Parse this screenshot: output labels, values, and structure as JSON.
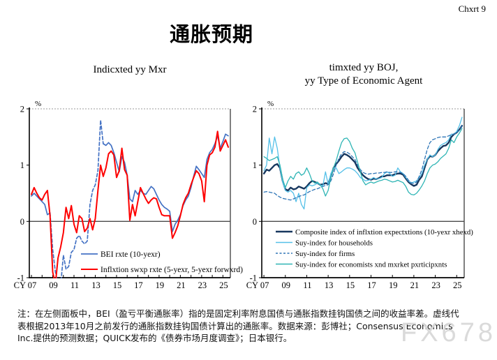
{
  "header": {
    "chart_no": "Chxrt 9",
    "title": "通胀预期"
  },
  "note": "注：在左侧面板中，BEI（盈亏平衡通胀率）指的是固定利率附息国债与通胀指数挂钩国债之间的收益率差。虚线代表根据2013年10月之前发行的通胀指数挂钩国债计算出的通胀率。数据来源：彭博社；Consensus Economics Inc.提供的预测数据；QUICK发布的《债券市场月度调查》；日本银行。",
  "watermark": "FX678",
  "chart_data": [
    {
      "type": "line",
      "title_lines": [
        "Indicxted yy Mxr"
      ],
      "unit": "%",
      "cy_label": "CY",
      "ylim": [
        -1,
        2
      ],
      "xlim": [
        2006.8,
        2025.7
      ],
      "y_ticks": [
        2,
        1,
        0,
        -1
      ],
      "x_tick_every": 1,
      "x_labels": [
        {
          "year": 2007,
          "text": "07"
        },
        {
          "year": 2009,
          "text": "09"
        },
        {
          "year": 2011,
          "text": "11"
        },
        {
          "year": 2013,
          "text": "13"
        },
        {
          "year": 2015,
          "text": "15"
        },
        {
          "year": 2017,
          "text": "17"
        },
        {
          "year": 2019,
          "text": "19"
        },
        {
          "year": 2021,
          "text": "21"
        },
        {
          "year": 2023,
          "text": "23"
        },
        {
          "year": 2025,
          "text": "25"
        }
      ],
      "grid": false,
      "legend_position": "inside-bottom-right",
      "series": [
        {
          "name": "BEI rxte (10-yexr)",
          "color": "#4472c4",
          "width": 1.7,
          "dash_range": [
            2008.75,
            2013.75
          ],
          "x_start": 2007,
          "x_step": 0.25,
          "values": [
            0.45,
            0.5,
            0.45,
            0.4,
            0.35,
            0.3,
            0.12,
            0.15,
            -0.5,
            -0.9,
            -1.12,
            -1.12,
            -0.6,
            -0.85,
            -0.8,
            -0.55,
            -0.5,
            -0.3,
            -0.25,
            -0.35,
            -0.4,
            -0.35,
            0.3,
            0.55,
            0.65,
            0.9,
            1.8,
            1.38,
            1.35,
            1.4,
            1.35,
            1.22,
            1.05,
            0.88,
            1.15,
            1.05,
            0.82,
            0.4,
            0.35,
            0.55,
            0.48,
            0.55,
            0.5,
            0.48,
            0.55,
            0.62,
            0.58,
            0.48,
            0.38,
            0.3,
            0.25,
            0.22,
            0.18,
            -0.18,
            -0.05,
            0.02,
            0.12,
            0.28,
            0.38,
            0.45,
            0.6,
            0.8,
            0.98,
            0.92,
            0.85,
            0.78,
            1.1,
            1.22,
            1.28,
            1.38,
            1.52,
            1.3,
            1.42,
            1.55,
            1.52
          ]
        },
        {
          "name": "Inflxtion swxp rxte (5-yexr, 5-yexr forwxrd)",
          "color": "#fe0000",
          "width": 2.0,
          "x_start": 2007,
          "x_step": 0.25,
          "values": [
            0.48,
            0.6,
            0.5,
            0.42,
            0.38,
            0.48,
            0.55,
            0.1,
            -0.9,
            -1.12,
            -0.65,
            -0.45,
            -0.2,
            0.25,
            0.05,
            0.28,
            -0.05,
            -0.2,
            0.1,
            0.05,
            -0.18,
            -0.12,
            0.05,
            -0.15,
            0.05,
            0.55,
            1.0,
            0.8,
            0.95,
            1.2,
            1.25,
            1.18,
            0.78,
            0.9,
            1.3,
            0.92,
            0.82,
            0.02,
            0.3,
            0.1,
            0.35,
            0.6,
            0.5,
            0.4,
            0.32,
            0.38,
            0.42,
            0.4,
            0.25,
            0.12,
            0.1,
            0.1,
            0.1,
            -0.3,
            -0.2,
            -0.08,
            0.1,
            0.3,
            0.42,
            0.5,
            0.65,
            0.78,
            0.9,
            0.85,
            0.72,
            0.35,
            1.0,
            1.18,
            1.22,
            1.32,
            1.6,
            1.25,
            1.35,
            1.45,
            1.32
          ]
        }
      ]
    },
    {
      "type": "line",
      "title_lines": [
        "timxted yy BOJ,",
        "yy Type of Economic Agent"
      ],
      "unit": "%",
      "cy_label": "CY",
      "ylim": [
        -1,
        2
      ],
      "xlim": [
        2006.8,
        2025.7
      ],
      "y_ticks": [
        2,
        1,
        0,
        -1
      ],
      "x_tick_every": 2,
      "x_labels": [
        {
          "year": 2007,
          "text": "07"
        },
        {
          "year": 2009,
          "text": "09"
        },
        {
          "year": 2011,
          "text": "11"
        },
        {
          "year": 2013,
          "text": "13"
        },
        {
          "year": 2015,
          "text": "15"
        },
        {
          "year": 2017,
          "text": "17"
        },
        {
          "year": 2019,
          "text": "19"
        },
        {
          "year": 2021,
          "text": "21"
        },
        {
          "year": 2023,
          "text": "23"
        },
        {
          "year": 2025,
          "text": "25"
        }
      ],
      "grid": false,
      "legend_position": "inside-bottom-left",
      "series": [
        {
          "name": "Composite index of inflxtion expectxtions (10-yexr xhexd)",
          "color": "#17375e",
          "width": 2.4,
          "x_start": 2007,
          "x_step": 0.25,
          "values": [
            0.85,
            0.92,
            0.9,
            0.95,
            1.0,
            1.02,
            0.95,
            0.72,
            0.57,
            0.55,
            0.6,
            0.57,
            0.58,
            0.62,
            0.6,
            0.58,
            0.62,
            0.68,
            0.72,
            0.7,
            0.68,
            0.65,
            0.66,
            0.68,
            0.67,
            0.8,
            0.95,
            1.02,
            1.08,
            1.15,
            1.2,
            1.18,
            1.15,
            1.1,
            1.05,
            0.95,
            0.88,
            0.82,
            0.78,
            0.75,
            0.74,
            0.76,
            0.75,
            0.77,
            0.8,
            0.8,
            0.82,
            0.82,
            0.82,
            0.84,
            0.85,
            0.85,
            0.83,
            0.76,
            0.7,
            0.66,
            0.63,
            0.65,
            0.74,
            0.8,
            0.95,
            1.1,
            1.16,
            1.15,
            1.18,
            1.25,
            1.3,
            1.34,
            1.35,
            1.4,
            1.5,
            1.55,
            1.58,
            1.63,
            1.7
          ]
        },
        {
          "name": "Suy-index for households",
          "color": "#54c0e8",
          "width": 1.3,
          "x_start": 2007,
          "x_step": 0.25,
          "values": [
            0.9,
            1.0,
            1.48,
            1.2,
            1.5,
            1.3,
            0.95,
            0.7,
            0.55,
            0.52,
            0.55,
            0.5,
            0.35,
            0.5,
            0.3,
            0.22,
            0.6,
            0.65,
            0.63,
            0.65,
            0.68,
            0.65,
            0.63,
            0.88,
            0.66,
            0.85,
            0.95,
            0.95,
            0.85,
            0.88,
            0.92,
            0.95,
            0.95,
            0.93,
            0.9,
            0.85,
            0.78,
            0.75,
            0.72,
            0.73,
            0.75,
            0.78,
            0.75,
            0.76,
            0.78,
            0.85,
            0.88,
            0.85,
            0.8,
            0.82,
            0.95,
            0.88,
            0.85,
            0.78,
            0.72,
            0.68,
            0.7,
            0.72,
            0.78,
            0.85,
            1.0,
            1.1,
            1.18,
            1.15,
            1.18,
            1.28,
            1.35,
            1.38,
            1.4,
            1.45,
            1.55,
            1.55,
            1.6,
            1.7,
            1.85
          ]
        },
        {
          "name": "Suy-index for firms",
          "color": "#2e75b6",
          "width": 1.3,
          "dash": true,
          "x_start": 2007,
          "x_step": 0.25,
          "values": [
            0.52,
            0.53,
            0.52,
            0.51,
            0.5,
            0.46,
            0.43,
            0.41,
            0.4,
            0.39,
            0.38,
            0.4,
            0.42,
            0.44,
            0.46,
            0.47,
            0.5,
            0.53,
            0.55,
            0.57,
            0.58,
            0.6,
            0.62,
            0.64,
            0.65,
            0.72,
            0.85,
            1.0,
            1.12,
            1.2,
            1.24,
            1.23,
            1.2,
            1.15,
            1.1,
            1.0,
            0.92,
            0.87,
            0.85,
            0.84,
            0.85,
            0.85,
            0.86,
            0.86,
            0.87,
            0.87,
            0.88,
            0.87,
            0.87,
            0.88,
            0.88,
            0.87,
            0.85,
            0.8,
            0.73,
            0.69,
            0.67,
            0.7,
            0.8,
            0.92,
            1.1,
            1.28,
            1.4,
            1.45,
            1.47,
            1.49,
            1.5,
            1.5,
            1.5,
            1.52,
            1.54,
            1.55,
            1.58,
            1.62,
            1.7
          ]
        },
        {
          "name": "Suy-index for economists xnd mxrket pxrticipxnts",
          "color": "#2fb5b5",
          "width": 1.3,
          "x_start": 2007,
          "x_step": 0.25,
          "values": [
            1.15,
            1.12,
            1.08,
            1.1,
            1.12,
            1.15,
            1.0,
            0.75,
            0.6,
            0.72,
            0.8,
            0.75,
            0.85,
            0.88,
            0.82,
            0.85,
            0.95,
            0.85,
            0.72,
            0.68,
            0.7,
            0.65,
            0.58,
            0.45,
            0.55,
            0.78,
            0.95,
            1.08,
            1.25,
            1.4,
            1.47,
            1.48,
            1.42,
            1.3,
            1.22,
            1.05,
            0.88,
            0.72,
            0.65,
            0.68,
            0.7,
            0.68,
            0.7,
            0.72,
            0.73,
            0.75,
            0.74,
            0.72,
            0.7,
            0.71,
            0.73,
            0.71,
            0.69,
            0.62,
            0.52,
            0.48,
            0.47,
            0.5,
            0.56,
            0.63,
            0.72,
            0.85,
            0.95,
            1.0,
            1.02,
            1.06,
            1.12,
            1.16,
            1.2,
            1.3,
            1.45,
            1.4,
            1.5,
            1.57,
            1.65
          ]
        }
      ]
    }
  ]
}
